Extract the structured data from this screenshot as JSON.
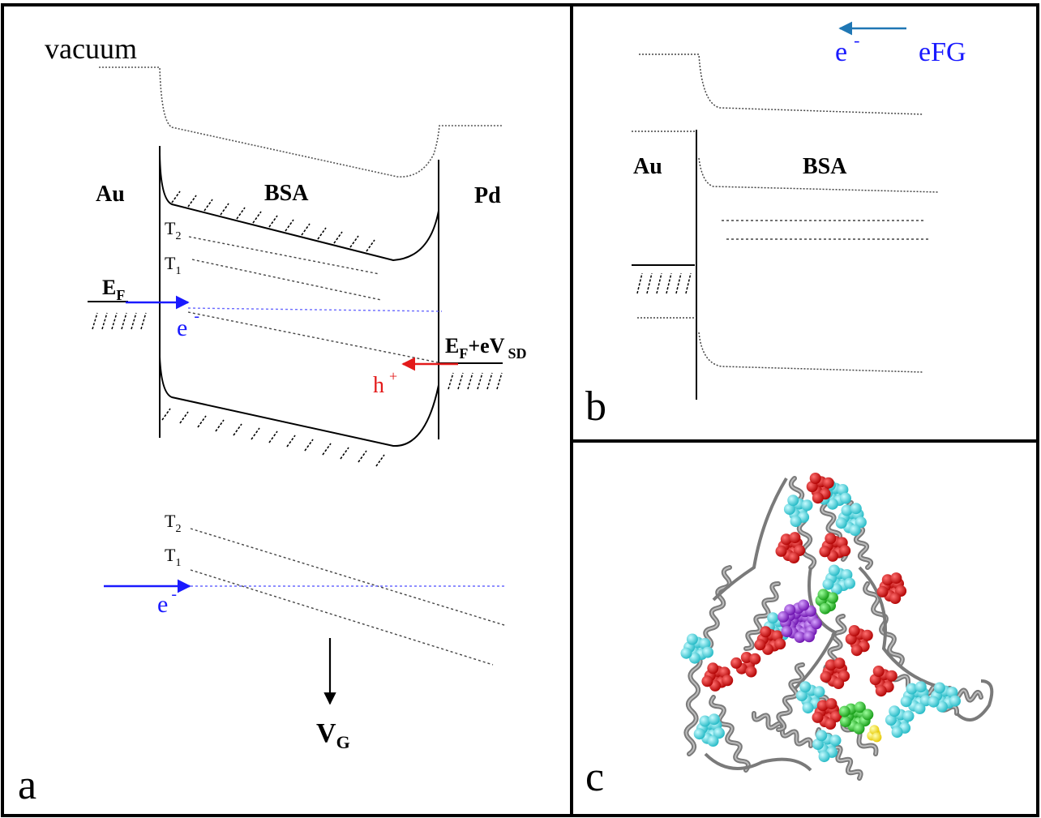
{
  "panel_a": {
    "panel_label": "a",
    "vacuum_label": "vacuum",
    "left_metal": "Au",
    "center_material": "BSA",
    "right_metal": "Pd",
    "trap_upper_t2": {
      "base": "T",
      "sub": "2"
    },
    "trap_upper_t1": {
      "base": "T",
      "sub": "1"
    },
    "fermi": {
      "base": "E",
      "sub": "F"
    },
    "electron": {
      "base": "e",
      "sup": "-"
    },
    "bias": {
      "e": "E",
      "f": "F",
      "rest": "+eV",
      "sd": "SD"
    },
    "hole": {
      "base": "h",
      "sup": "+"
    },
    "trap_lower_t2": {
      "base": "T",
      "sub": "2"
    },
    "trap_lower_t1": {
      "base": "T",
      "sub": "1"
    },
    "electron_lower": {
      "base": "e",
      "sup": "-"
    },
    "gate": {
      "base": "V",
      "sub": "G"
    }
  },
  "panel_b": {
    "panel_label": "b",
    "electron": {
      "base": "e",
      "sup": "-"
    },
    "field_label": "eFG",
    "left_metal": "Au",
    "material": "BSA"
  },
  "panel_c": {
    "panel_label": "c"
  },
  "colors": {
    "electron_arrow": "#1a1aff",
    "hole_arrow": "#e31a1a",
    "field_arrow": "#1f77b4",
    "helix": "#7a7a7a",
    "atom_red": "#d40000",
    "atom_cyan": "#33d6e0",
    "atom_green": "#22cc22",
    "atom_purple": "#8a2be2",
    "atom_yellow": "#ffee00"
  }
}
